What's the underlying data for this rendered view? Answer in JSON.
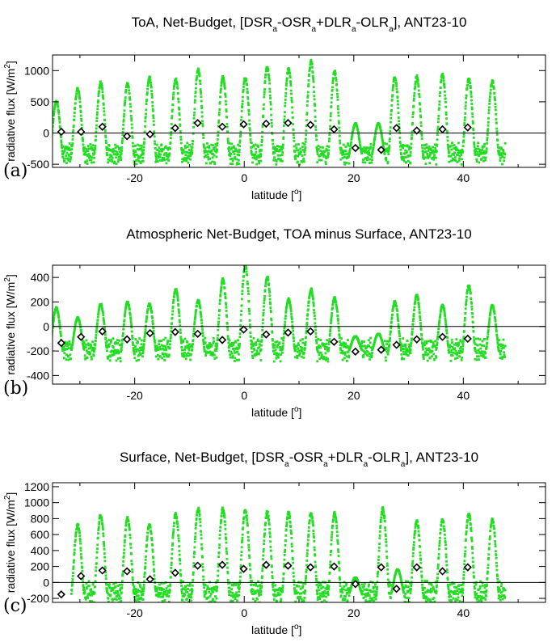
{
  "chart_data": [
    {
      "type": "scatter",
      "panel_label": "(a)",
      "title": {
        "main": "ToA, Net-Budget, [DSR",
        "s1": "a",
        "t1": "-OSR",
        "s2": "a",
        "t2": "+DLR",
        "s3": "a",
        "t3": "-OLR",
        "s4": "a",
        "t4": "], ANT23-10"
      },
      "xlabel": {
        "text": "latitude [",
        "sup": "o",
        "end": "]"
      },
      "ylabel": {
        "text": "radiative flux [W/m",
        "sup": "2",
        "end": "]"
      },
      "xlim": [
        -35,
        55
      ],
      "ylim": [
        -550,
        1250
      ],
      "xticks": [
        -20,
        0,
        20,
        40
      ],
      "xtick_labels": [
        "-20",
        "0",
        "20",
        "40"
      ],
      "yticks": [
        -500,
        0,
        500,
        1000
      ],
      "ytick_labels": [
        "-500",
        "0",
        "500",
        "1000"
      ],
      "reference_line_y": 0,
      "series": [
        {
          "marker": "green-dot",
          "color": "#22dd22",
          "cycles": [
            [
              -34.3,
              500
            ],
            [
              -30.4,
              700
            ],
            [
              -26.2,
              800
            ],
            [
              -21.3,
              780
            ],
            [
              -17.3,
              880
            ],
            [
              -12.5,
              860
            ],
            [
              -8.4,
              1000
            ],
            [
              -3.9,
              900
            ],
            [
              0.2,
              880
            ],
            [
              4.2,
              1050
            ],
            [
              8.1,
              1020
            ],
            [
              12.2,
              1140
            ],
            [
              16.5,
              980
            ],
            [
              20.3,
              150
            ],
            [
              24.5,
              150
            ],
            [
              27.5,
              880
            ],
            [
              31.5,
              900
            ],
            [
              36.2,
              930
            ],
            [
              41.0,
              870
            ],
            [
              45.3,
              820
            ]
          ],
          "night_level": -330
        },
        {
          "marker": "black-diamond",
          "name": "",
          "color": "#000000",
          "x": [
            -33.4,
            -29.8,
            -25.9,
            -21.4,
            -17.2,
            -12.6,
            -8.5,
            -4.0,
            -0.1,
            4.0,
            8.0,
            12.1,
            16.4,
            20.3,
            25.0,
            27.8,
            31.5,
            36.2,
            40.8
          ],
          "y": [
            20,
            20,
            100,
            -50,
            -20,
            80,
            160,
            100,
            140,
            150,
            160,
            130,
            60,
            -240,
            -270,
            80,
            40,
            60,
            90
          ]
        }
      ]
    },
    {
      "type": "scatter",
      "panel_label": "(b)",
      "title": {
        "main": "Atmospheric Net-Budget, TOA minus Surface, ANT23-10"
      },
      "xlabel": {
        "text": "latitude [",
        "sup": "o",
        "end": "]"
      },
      "ylabel": {
        "text": "radiative flux [W/m",
        "sup": "2",
        "end": "]"
      },
      "xlim": [
        -35,
        55
      ],
      "ylim": [
        -470,
        500
      ],
      "xticks": [
        -20,
        0,
        20,
        40
      ],
      "xtick_labels": [
        "-20",
        "0",
        "20",
        "40"
      ],
      "yticks": [
        -400,
        -200,
        0,
        200,
        400
      ],
      "ytick_labels": [
        "-400",
        "-200",
        "0",
        "200",
        "400"
      ],
      "reference_line_y": 0,
      "series": [
        {
          "marker": "green-dot",
          "color": "#22dd22",
          "cycles": [
            [
              -34.3,
              150
            ],
            [
              -30.4,
              70
            ],
            [
              -26.2,
              180
            ],
            [
              -21.3,
              200
            ],
            [
              -17.3,
              180
            ],
            [
              -12.5,
              300
            ],
            [
              -8.4,
              210
            ],
            [
              -3.9,
              380
            ],
            [
              0.2,
              500
            ],
            [
              4.2,
              400
            ],
            [
              8.1,
              220
            ],
            [
              12.2,
              300
            ],
            [
              16.5,
              230
            ],
            [
              20.3,
              -80
            ],
            [
              24.5,
              -60
            ],
            [
              27.5,
              200
            ],
            [
              31.5,
              250
            ],
            [
              36.2,
              170
            ],
            [
              41.0,
              330
            ],
            [
              45.3,
              170
            ]
          ],
          "night_level": -190
        },
        {
          "marker": "black-diamond",
          "name": "",
          "color": "#000000",
          "x": [
            -33.4,
            -29.8,
            -25.9,
            -21.4,
            -17.2,
            -12.6,
            -8.5,
            -4.0,
            -0.1,
            4.0,
            8.0,
            12.1,
            16.4,
            20.3,
            25.0,
            27.8,
            31.5,
            36.2,
            40.8
          ],
          "y": [
            -135,
            -85,
            -40,
            -105,
            -55,
            -45,
            -60,
            -110,
            -25,
            -65,
            -50,
            -40,
            -125,
            -205,
            -190,
            -150,
            -105,
            -85,
            -100
          ]
        }
      ]
    },
    {
      "type": "scatter",
      "panel_label": "(c)",
      "title": {
        "main": "Surface, Net-Budget, [DSR",
        "s1": "a",
        "t1": "-OSR",
        "s2": "a",
        "t2": "+DLR",
        "s3": "a",
        "t3": "-OLR",
        "s4": "a",
        "t4": "], ANT23-10"
      },
      "xlabel": {
        "text": "latitude [",
        "sup": "o",
        "end": "]"
      },
      "ylabel": {
        "text": "radiative flux [W/m",
        "sup": "2",
        "end": "]"
      },
      "xlim": [
        -35,
        55
      ],
      "ylim": [
        -250,
        1250
      ],
      "xticks": [
        -20,
        0,
        20,
        40
      ],
      "xtick_labels": [
        "-20",
        "0",
        "20",
        "40"
      ],
      "yticks": [
        -200,
        0,
        200,
        400,
        600,
        800,
        1000,
        1200
      ],
      "ytick_labels": [
        "-200",
        "0",
        "200",
        "400",
        "600",
        "800",
        "1000",
        "1200"
      ],
      "reference_line_y": 0,
      "series": [
        {
          "marker": "green-dot",
          "color": "#22dd22",
          "cycles": [
            [
              -30.4,
              720
            ],
            [
              -26.2,
              840
            ],
            [
              -21.3,
              800
            ],
            [
              -17.3,
              720
            ],
            [
              -12.5,
              850
            ],
            [
              -8.4,
              920
            ],
            [
              -3.9,
              920
            ],
            [
              0.2,
              900
            ],
            [
              4.2,
              880
            ],
            [
              8.1,
              870
            ],
            [
              12.2,
              860
            ],
            [
              16.5,
              870
            ],
            [
              20.3,
              60
            ],
            [
              25.3,
              920
            ],
            [
              28.0,
              160
            ],
            [
              31.5,
              760
            ],
            [
              36.2,
              780
            ],
            [
              41.0,
              860
            ],
            [
              45.3,
              780
            ]
          ],
          "night_level": -130
        },
        {
          "marker": "black-diamond",
          "name": "",
          "color": "#000000",
          "x": [
            -33.4,
            -29.8,
            -25.9,
            -21.4,
            -17.2,
            -12.6,
            -8.5,
            -4.0,
            -0.1,
            4.0,
            8.0,
            12.1,
            16.4,
            20.3,
            25.0,
            27.8,
            31.5,
            36.2,
            40.8
          ],
          "y": [
            -150,
            80,
            150,
            140,
            40,
            120,
            210,
            220,
            170,
            220,
            210,
            190,
            200,
            -20,
            190,
            -80,
            190,
            140,
            190
          ]
        }
      ]
    }
  ]
}
